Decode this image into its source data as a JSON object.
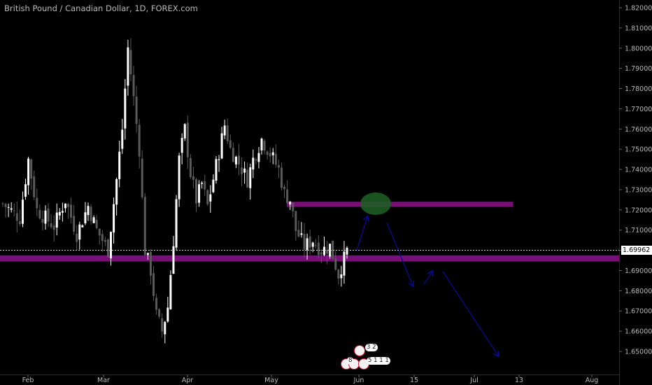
{
  "header": {
    "title": "British Pound / Canadian Dollar, 1D, FOREX.com"
  },
  "current_price": "1.69962",
  "colors": {
    "background": "#000000",
    "bull_candle": "#ffffff",
    "bear_candle": "#5a5a5a",
    "zone": "#7a0f78",
    "arrow": "#0a0a8a",
    "target_ellipse": "#1e5c24",
    "axis_text": "#b8b8b8"
  },
  "chart_data": {
    "type": "candlestick",
    "symbol": "British Pound / Canadian Dollar",
    "timeframe": "1D",
    "source": "FOREX.com",
    "y_axis": {
      "ticks": [
        "1.65000",
        "1.66000",
        "1.67000",
        "1.68000",
        "1.69000",
        "1.70000",
        "1.71000",
        "1.72000",
        "1.73000",
        "1.74000",
        "1.75000",
        "1.76000",
        "1.77000",
        "1.78000",
        "1.79000",
        "1.80000",
        "1.81000",
        "1.82000"
      ],
      "ylim": [
        1.645,
        1.825
      ]
    },
    "x_axis": {
      "ticks": [
        "Feb",
        "Mar",
        "Apr",
        "May",
        "Jun",
        "15",
        "Jul",
        "13",
        "Aug"
      ]
    },
    "last_price": 1.69962,
    "zones": [
      {
        "name": "resistance",
        "from": 1.7215,
        "to": 1.724
      },
      {
        "name": "support",
        "from": 1.6945,
        "to": 1.6975
      }
    ]
  }
}
